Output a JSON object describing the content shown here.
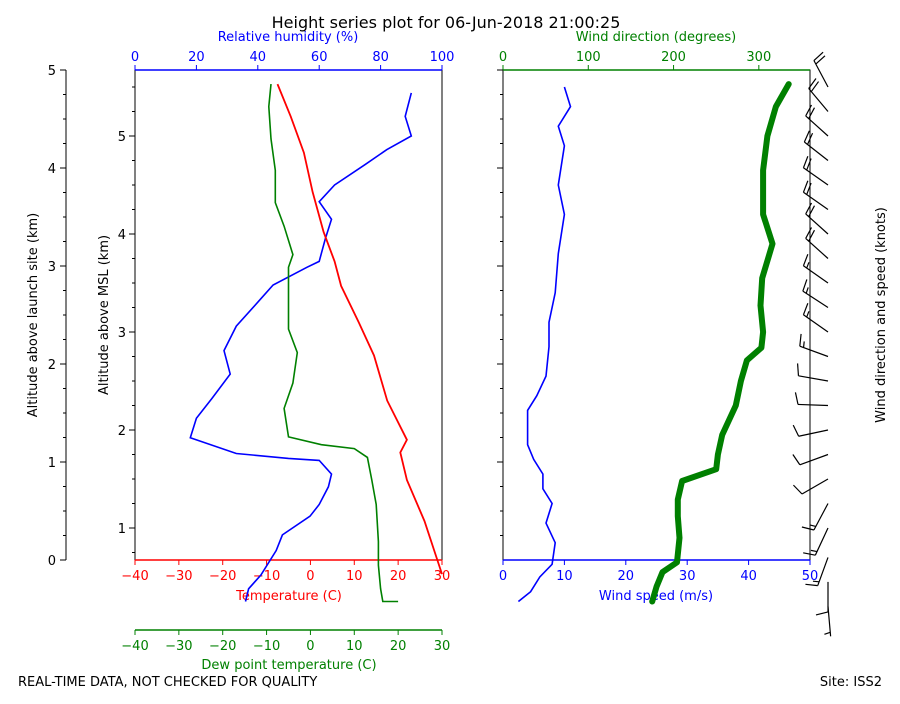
{
  "title": "Height series plot for 06-Jun-2018 21:00:25",
  "footer": {
    "left": "REAL-TIME DATA, NOT CHECKED FOR QUALITY",
    "right": "Site: ISS2"
  },
  "colors": {
    "temperature": "#ff0000",
    "dewpoint": "#008000",
    "humidity": "#0000ff",
    "wind_speed": "#0000ff",
    "wind_direction": "#008000",
    "axis": "#000000"
  },
  "chart_data": [
    {
      "type": "line",
      "name": "thermo-panel",
      "y_axes": {
        "launch_site": {
          "label": "Altitude above launch site (km)",
          "ticks": [
            "0",
            "1",
            "2",
            "3",
            "4",
            "5"
          ]
        },
        "msl": {
          "label": "Altitude above MSL (km)",
          "ticks": [
            "1",
            "2",
            "3",
            "4",
            "5"
          ]
        }
      },
      "x_axes": {
        "temperature": {
          "label": "Temperature (C)",
          "range": [
            -40,
            30
          ],
          "ticks": [
            "−40",
            "−30",
            "−20",
            "−10",
            "0",
            "10",
            "20",
            "30"
          ]
        },
        "dewpoint": {
          "label": "Dew point temperature (C)",
          "range": [
            -40,
            30
          ],
          "ticks": [
            "−40",
            "−30",
            "−20",
            "−10",
            "0",
            "10",
            "20",
            "30"
          ]
        },
        "humidity": {
          "label": "Relative humidity (%)",
          "range": [
            0,
            100
          ],
          "ticks": [
            "0",
            "20",
            "40",
            "60",
            "80",
            "100"
          ]
        }
      },
      "series": [
        {
          "name": "Temperature",
          "axis": "temperature",
          "points": [
            [
              30,
              0.53
            ],
            [
              26,
              1.07
            ],
            [
              22,
              1.49
            ],
            [
              20.5,
              1.77
            ],
            [
              22,
              1.9
            ],
            [
              17.5,
              2.3
            ],
            [
              14.5,
              2.76
            ],
            [
              11,
              3.1
            ],
            [
              7,
              3.47
            ],
            [
              5.5,
              3.72
            ],
            [
              3,
              4.02
            ],
            [
              0.5,
              4.43
            ],
            [
              -1.5,
              4.83
            ],
            [
              -4.5,
              5.2
            ],
            [
              -7.5,
              5.53
            ]
          ]
        },
        {
          "name": "Dew point",
          "axis": "dewpoint",
          "points": [
            [
              20,
              0.25
            ],
            [
              16.5,
              0.25
            ],
            [
              16,
              0.38
            ],
            [
              15.5,
              0.62
            ],
            [
              15.5,
              0.86
            ],
            [
              15,
              1.24
            ],
            [
              14,
              1.49
            ],
            [
              13,
              1.72
            ],
            [
              10,
              1.81
            ],
            [
              2.5,
              1.85
            ],
            [
              -5,
              1.93
            ],
            [
              -6,
              2.22
            ],
            [
              -4,
              2.48
            ],
            [
              -3,
              2.79
            ],
            [
              -5,
              3.03
            ],
            [
              -5,
              3.35
            ],
            [
              -5,
              3.66
            ],
            [
              -4,
              3.79
            ],
            [
              -6,
              4.08
            ],
            [
              -8,
              4.32
            ],
            [
              -8,
              4.65
            ],
            [
              -9,
              4.97
            ],
            [
              -9.5,
              5.3
            ],
            [
              -9,
              5.53
            ]
          ]
        },
        {
          "name": "Relative humidity",
          "axis": "humidity",
          "points": [
            [
              36,
              0.25
            ],
            [
              37,
              0.38
            ],
            [
              41,
              0.52
            ],
            [
              46,
              0.77
            ],
            [
              48,
              0.93
            ],
            [
              57,
              1.12
            ],
            [
              60,
              1.24
            ],
            [
              63,
              1.42
            ],
            [
              64,
              1.55
            ],
            [
              60,
              1.69
            ],
            [
              50,
              1.71
            ],
            [
              33,
              1.76
            ],
            [
              18,
              1.92
            ],
            [
              20,
              2.12
            ],
            [
              25,
              2.32
            ],
            [
              31,
              2.57
            ],
            [
              29,
              2.81
            ],
            [
              33,
              3.06
            ],
            [
              41,
              3.34
            ],
            [
              45,
              3.48
            ],
            [
              56,
              3.66
            ],
            [
              60,
              3.72
            ],
            [
              62,
              3.95
            ],
            [
              64,
              4.15
            ],
            [
              60,
              4.33
            ],
            [
              65,
              4.5
            ],
            [
              75,
              4.71
            ],
            [
              82,
              4.86
            ],
            [
              90,
              5.0
            ],
            [
              88,
              5.2
            ],
            [
              90,
              5.44
            ]
          ]
        }
      ]
    },
    {
      "type": "line",
      "name": "wind-panel",
      "x_axes": {
        "wind_speed": {
          "label": "Wind speed (m/s)",
          "range": [
            0,
            50
          ],
          "ticks": [
            "0",
            "10",
            "20",
            "30",
            "40",
            "50"
          ]
        },
        "wind_direction": {
          "label": "Wind direction (degrees)",
          "range": [
            0,
            360
          ],
          "ticks": [
            "0",
            "100",
            "200",
            "300"
          ]
        }
      },
      "right_label": "Wind direction and speed (knots)",
      "series": [
        {
          "name": "Wind speed",
          "axis": "wind_speed",
          "points": [
            [
              2.5,
              0.25
            ],
            [
              4.5,
              0.35
            ],
            [
              6,
              0.5
            ],
            [
              8,
              0.63
            ],
            [
              8.5,
              0.85
            ],
            [
              7,
              1.05
            ],
            [
              8,
              1.25
            ],
            [
              6.5,
              1.4
            ],
            [
              6.5,
              1.55
            ],
            [
              5,
              1.7
            ],
            [
              4,
              1.85
            ],
            [
              4,
              2.05
            ],
            [
              4,
              2.2
            ],
            [
              5.5,
              2.35
            ],
            [
              7,
              2.55
            ],
            [
              7.5,
              2.85
            ],
            [
              7.5,
              3.1
            ],
            [
              8.5,
              3.4
            ],
            [
              9,
              3.8
            ],
            [
              10,
              4.2
            ],
            [
              9,
              4.5
            ],
            [
              10,
              4.9
            ],
            [
              9,
              5.1
            ],
            [
              11,
              5.3
            ],
            [
              10,
              5.5
            ]
          ]
        },
        {
          "name": "Wind direction",
          "axis": "wind_direction",
          "points": [
            [
              175,
              0.25
            ],
            [
              180,
              0.4
            ],
            [
              187,
              0.55
            ],
            [
              204,
              0.65
            ],
            [
              207,
              0.9
            ],
            [
              205,
              1.12
            ],
            [
              205,
              1.29
            ],
            [
              210,
              1.48
            ],
            [
              250,
              1.6
            ],
            [
              252,
              1.75
            ],
            [
              257,
              1.95
            ],
            [
              273,
              2.25
            ],
            [
              279,
              2.5
            ],
            [
              286,
              2.71
            ],
            [
              303,
              2.84
            ],
            [
              305,
              3.0
            ],
            [
              302,
              3.27
            ],
            [
              304,
              3.55
            ],
            [
              316,
              3.9
            ],
            [
              305,
              4.2
            ],
            [
              305,
              4.65
            ],
            [
              310,
              5.0
            ],
            [
              320,
              5.3
            ],
            [
              335,
              5.53
            ]
          ]
        },
        {
          "name": "Wind barbs",
          "type": "barbs",
          "points": [
            [
              0.2,
              175,
              3
            ],
            [
              0.45,
              180,
              9
            ],
            [
              0.7,
              200,
              15
            ],
            [
              1.0,
              205,
              16
            ],
            [
              1.25,
              208,
              13
            ],
            [
              1.5,
              240,
              12
            ],
            [
              1.75,
              250,
              9
            ],
            [
              2.0,
              258,
              8
            ],
            [
              2.25,
              272,
              8
            ],
            [
              2.5,
              280,
              10
            ],
            [
              2.75,
              290,
              14
            ],
            [
              3.0,
              305,
              15
            ],
            [
              3.25,
              303,
              15
            ],
            [
              3.5,
              305,
              17
            ],
            [
              3.75,
              312,
              18
            ],
            [
              4.0,
              312,
              19
            ],
            [
              4.25,
              305,
              19
            ],
            [
              4.5,
              305,
              18
            ],
            [
              4.75,
              308,
              19
            ],
            [
              5.0,
              312,
              18
            ],
            [
              5.25,
              320,
              21
            ],
            [
              5.5,
              332,
              20
            ]
          ]
        }
      ]
    }
  ]
}
